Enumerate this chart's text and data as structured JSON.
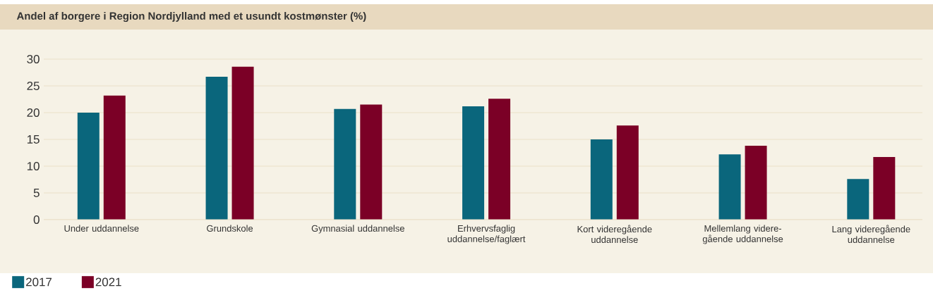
{
  "chart_data": {
    "type": "bar",
    "title": "Andel af borgere i Region Nordjylland med et usundt kostmønster (%)",
    "categories": [
      "Under uddannelse",
      "Grundskole",
      "Gymnasial uddannelse",
      "Erhvervsfaglig uddannelse/faglært",
      "Kort videregående uddannelse",
      "Mellemlang videre- gående uddannelse",
      "Lang videregående uddannelse"
    ],
    "series": [
      {
        "name": "2017",
        "color": "#0a667c",
        "values": [
          20.0,
          26.7,
          20.7,
          21.2,
          15.0,
          12.2,
          7.6
        ]
      },
      {
        "name": "2021",
        "color": "#7b0026",
        "values": [
          23.2,
          28.6,
          21.5,
          22.6,
          17.6,
          13.8,
          11.7
        ]
      }
    ],
    "ylim": [
      0,
      30
    ],
    "yticks": [
      0,
      5,
      10,
      15,
      20,
      25,
      30
    ],
    "grid": "y",
    "legend": "bottom"
  }
}
